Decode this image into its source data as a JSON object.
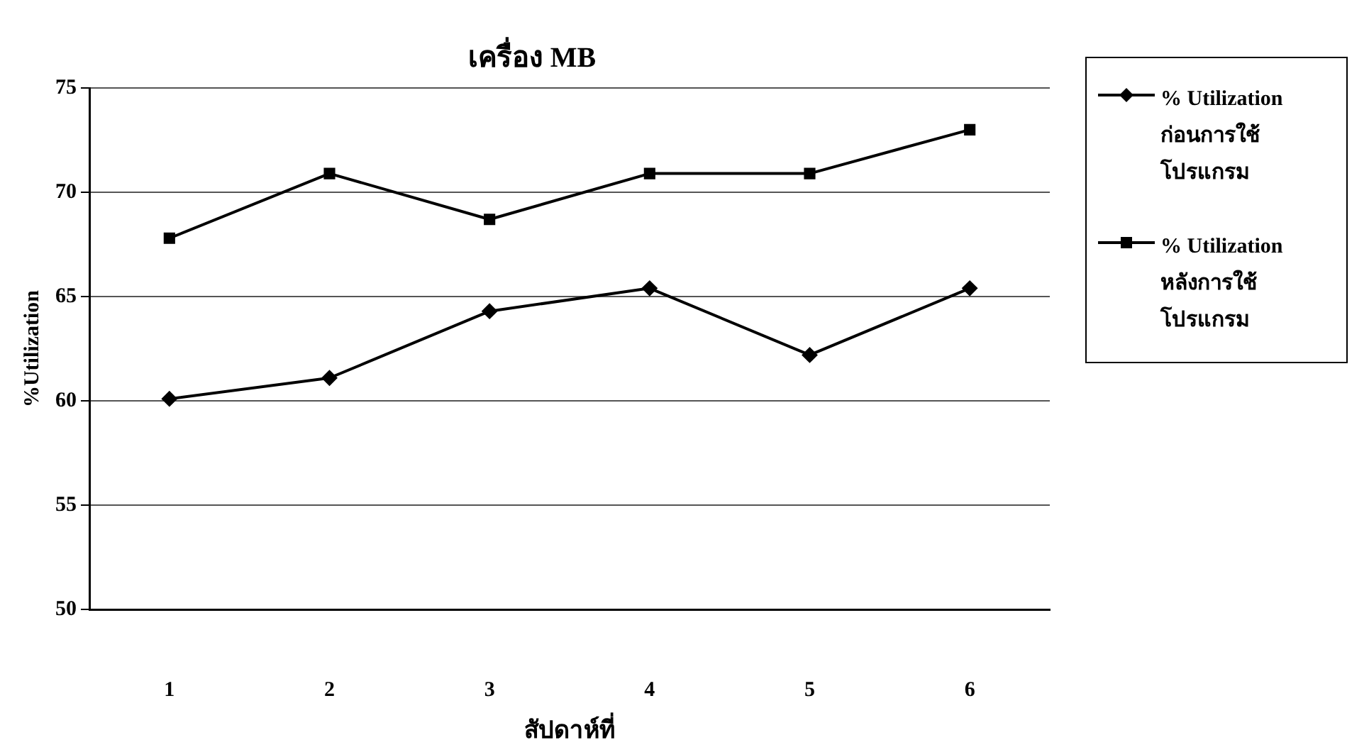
{
  "chart_data": {
    "type": "line",
    "title": "เครื่อง MB",
    "xlabel": "สัปดาห์ที่",
    "ylabel": "%Utilization",
    "categories": [
      "1",
      "2",
      "3",
      "4",
      "5",
      "6"
    ],
    "series": [
      {
        "name": "% Utilization ก่อนการใช้โปรแกรม",
        "color": "#000000",
        "marker": "diamond",
        "values": [
          60.1,
          61.1,
          64.3,
          65.4,
          62.2,
          65.4
        ]
      },
      {
        "name": "% Utilization หลังการใช้โปรแกรม",
        "color": "#000000",
        "marker": "square",
        "values": [
          67.8,
          70.9,
          68.7,
          70.9,
          70.9,
          73.0
        ]
      }
    ],
    "ylim": [
      50,
      75
    ],
    "yticks": [
      50,
      55,
      60,
      65,
      70,
      75
    ],
    "grid": "y",
    "legend": "right",
    "line_style": "solid"
  }
}
